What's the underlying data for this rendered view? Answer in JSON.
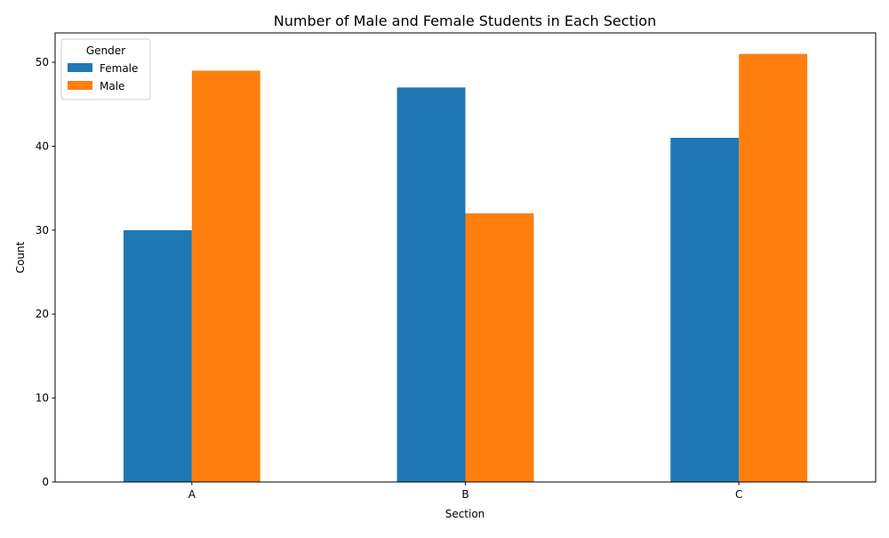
{
  "chart_data": {
    "type": "bar",
    "title": "Number of Male and Female Students in Each Section",
    "xlabel": "Section",
    "ylabel": "Count",
    "categories": [
      "A",
      "B",
      "C"
    ],
    "series": [
      {
        "name": "Female",
        "color": "#1f77b4",
        "values": [
          30,
          47,
          41
        ]
      },
      {
        "name": "Male",
        "color": "#ff7f0e",
        "values": [
          49,
          32,
          51
        ]
      }
    ],
    "ylim": [
      0,
      53.5
    ],
    "yticks": [
      0,
      10,
      20,
      30,
      40,
      50
    ],
    "grid": false,
    "legend": {
      "title": "Gender",
      "position": "top-left"
    }
  }
}
